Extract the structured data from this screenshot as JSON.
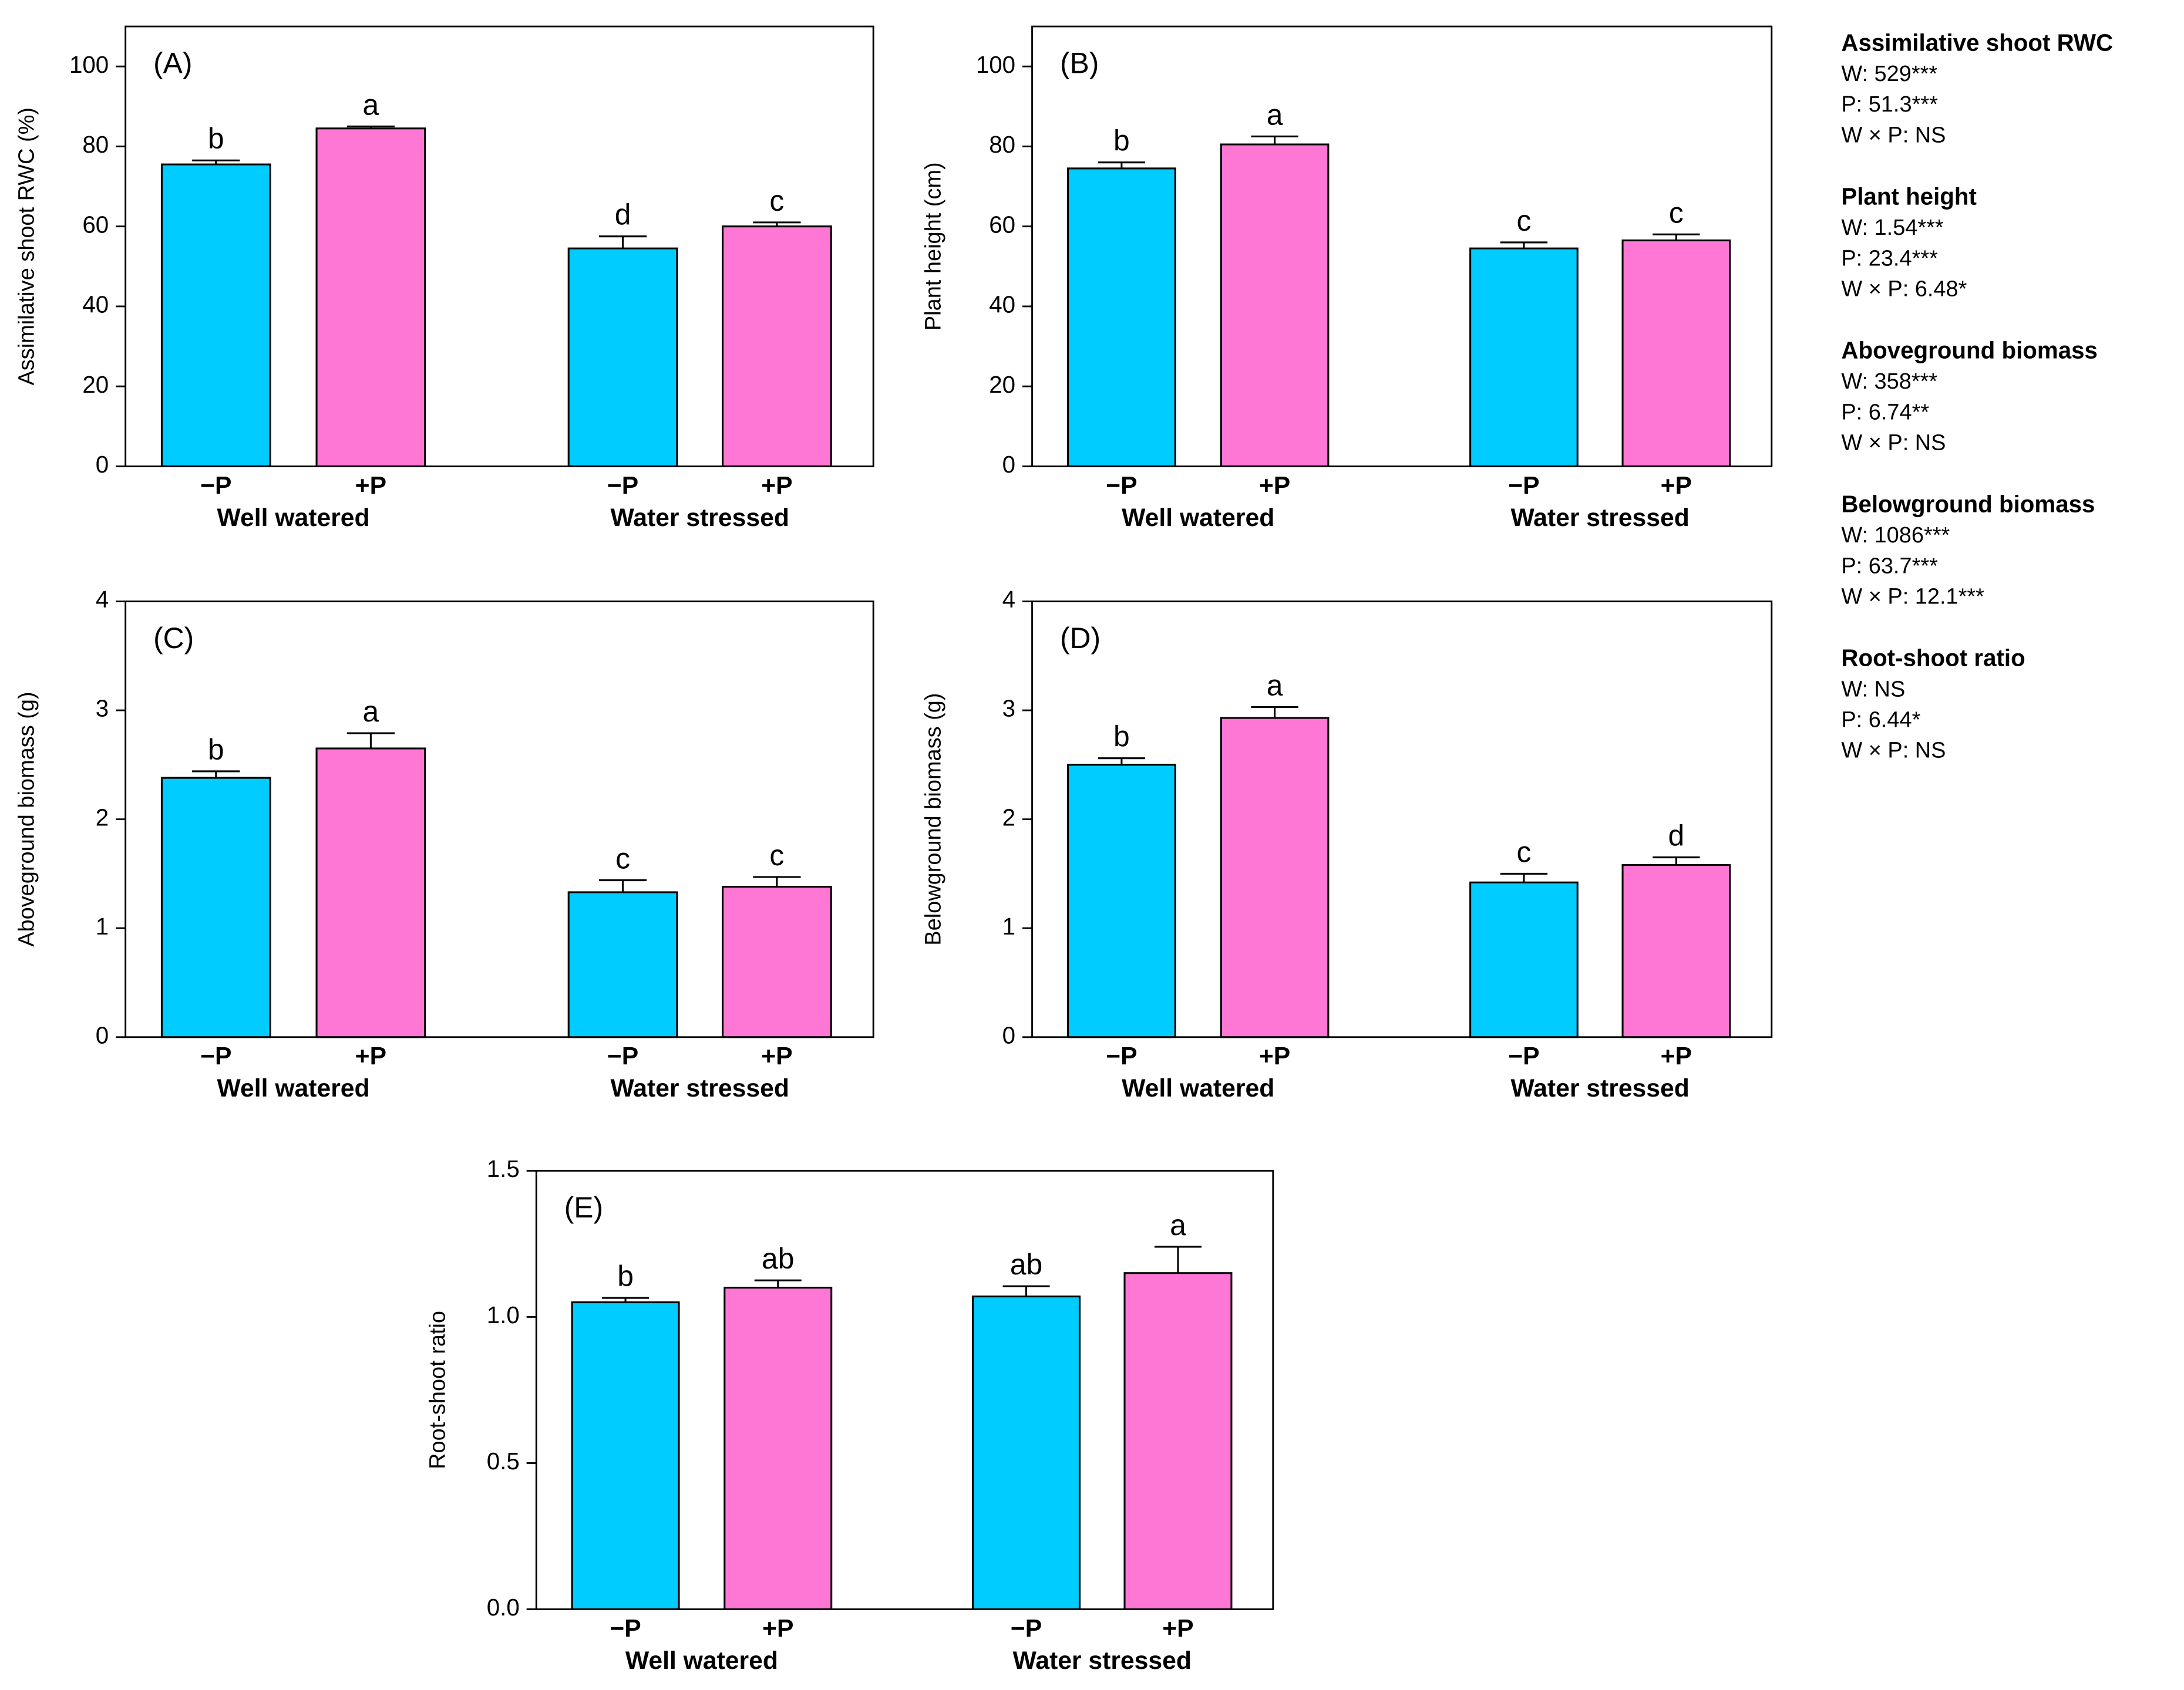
{
  "chart_data": [
    {
      "type": "bar",
      "label": "(A)",
      "ylabel": "Assimilative shoot RWC (%)",
      "groups": [
        "Well watered",
        "Water stressed"
      ],
      "series": [
        {
          "name": "−P",
          "color": "#00ccff",
          "values": [
            75.5,
            54.5
          ],
          "errors": [
            1,
            3
          ],
          "letters": [
            "b",
            "d"
          ]
        },
        {
          "name": "+P",
          "color": "#ff77d5",
          "values": [
            84.5,
            60
          ],
          "errors": [
            0.5,
            1
          ],
          "letters": [
            "a",
            "c"
          ]
        }
      ],
      "ylim": [
        0,
        110
      ],
      "yticks": [
        0,
        20,
        40,
        60,
        80,
        100
      ]
    },
    {
      "type": "bar",
      "label": "(B)",
      "ylabel": "Plant height (cm)",
      "groups": [
        "Well watered",
        "Water stressed"
      ],
      "series": [
        {
          "name": "−P",
          "color": "#00ccff",
          "values": [
            74.5,
            54.5
          ],
          "errors": [
            1.5,
            1.5
          ],
          "letters": [
            "b",
            "c"
          ]
        },
        {
          "name": "+P",
          "color": "#ff77d5",
          "values": [
            80.5,
            56.5
          ],
          "errors": [
            2,
            1.5
          ],
          "letters": [
            "a",
            "c"
          ]
        }
      ],
      "ylim": [
        0,
        110
      ],
      "yticks": [
        0,
        20,
        40,
        60,
        80,
        100
      ]
    },
    {
      "type": "bar",
      "label": "(C)",
      "ylabel": "Aboveground biomass (g)",
      "groups": [
        "Well watered",
        "Water stressed"
      ],
      "series": [
        {
          "name": "−P",
          "color": "#00ccff",
          "values": [
            2.38,
            1.33
          ],
          "errors": [
            0.06,
            0.11
          ],
          "letters": [
            "b",
            "c"
          ]
        },
        {
          "name": "+P",
          "color": "#ff77d5",
          "values": [
            2.65,
            1.38
          ],
          "errors": [
            0.14,
            0.09
          ],
          "letters": [
            "a",
            "c"
          ]
        }
      ],
      "ylim": [
        0,
        4
      ],
      "yticks": [
        0,
        1,
        2,
        3,
        4
      ]
    },
    {
      "type": "bar",
      "label": "(D)",
      "ylabel": "Belowground biomass (g)",
      "groups": [
        "Well watered",
        "Water stressed"
      ],
      "series": [
        {
          "name": "−P",
          "color": "#00ccff",
          "values": [
            2.5,
            1.42
          ],
          "errors": [
            0.06,
            0.08
          ],
          "letters": [
            "b",
            "c"
          ]
        },
        {
          "name": "+P",
          "color": "#ff77d5",
          "values": [
            2.93,
            1.58
          ],
          "errors": [
            0.1,
            0.07
          ],
          "letters": [
            "a",
            "d"
          ]
        }
      ],
      "ylim": [
        0,
        4
      ],
      "yticks": [
        0,
        1,
        2,
        3,
        4
      ]
    },
    {
      "type": "bar",
      "label": "(E)",
      "ylabel": "Root-shoot ratio",
      "groups": [
        "Well watered",
        "Water stressed"
      ],
      "series": [
        {
          "name": "−P",
          "color": "#00ccff",
          "values": [
            1.05,
            1.07
          ],
          "errors": [
            0.015,
            0.035
          ],
          "letters": [
            "b",
            "ab"
          ]
        },
        {
          "name": "+P",
          "color": "#ff77d5",
          "values": [
            1.1,
            1.15
          ],
          "errors": [
            0.025,
            0.09
          ],
          "letters": [
            "ab",
            "a"
          ]
        }
      ],
      "ylim": [
        0,
        1.5
      ],
      "yticks": [
        {
          "value": 0,
          "label": "0.0"
        },
        0.5,
        {
          "value": 1,
          "label": "1.0"
        },
        1.5
      ]
    }
  ],
  "statistics": [
    {
      "title": "Assimilative shoot RWC",
      "lines": [
        "W: 529***",
        "P: 51.3***",
        "W × P: NS"
      ]
    },
    {
      "title": "Plant height",
      "lines": [
        "W: 1.54***",
        "P: 23.4***",
        "W × P: 6.48*"
      ]
    },
    {
      "title": "Aboveground biomass",
      "lines": [
        "W: 358***",
        "P: 6.74**",
        "W × P: NS"
      ]
    },
    {
      "title": "Belowground biomass",
      "lines": [
        "W: 1086***",
        "P: 63.7***",
        "W × P: 12.1***"
      ]
    },
    {
      "title": "Root-shoot ratio",
      "lines": [
        "W: NS",
        "P: 6.44*",
        "W × P: NS"
      ]
    }
  ]
}
